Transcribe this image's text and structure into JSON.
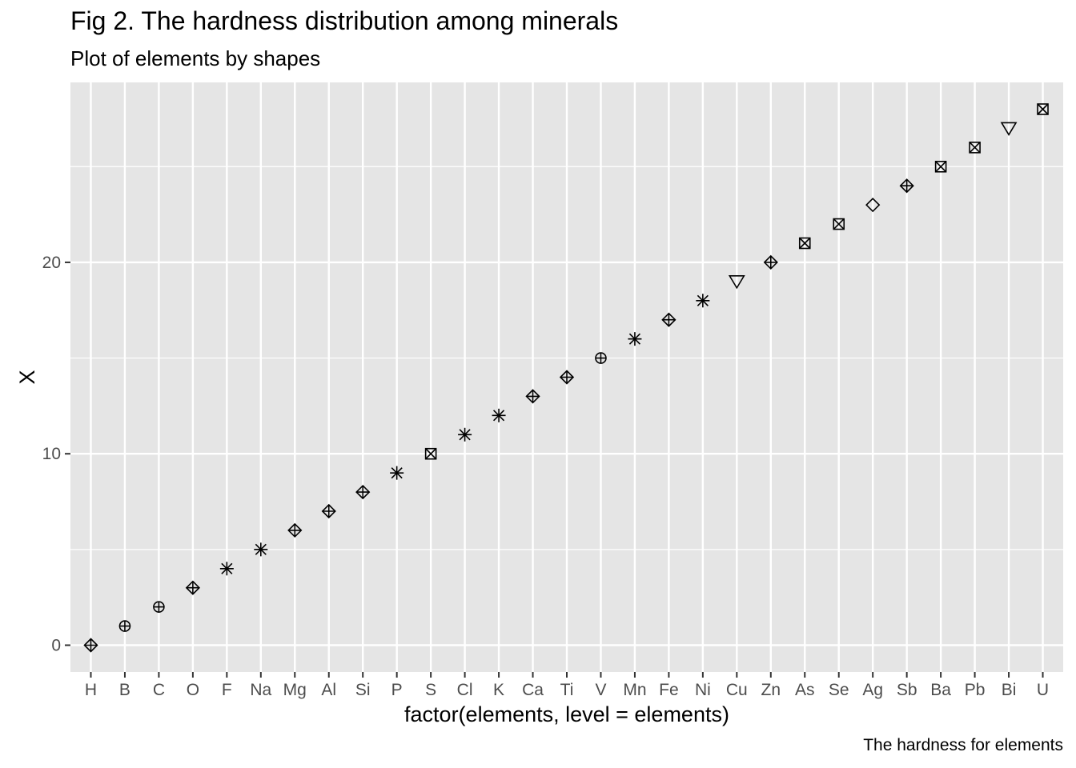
{
  "chart_data": {
    "type": "scatter",
    "title": "Fig 2. The hardness distribution among minerals",
    "subtitle": "Plot of elements by shapes",
    "caption": "The hardness for elements",
    "xlabel": "factor(elements, level = elements)",
    "ylabel": "X",
    "categories": [
      "H",
      "B",
      "C",
      "O",
      "F",
      "Na",
      "Mg",
      "Al",
      "Si",
      "P",
      "S",
      "Cl",
      "K",
      "Ca",
      "Ti",
      "V",
      "Mn",
      "Fe",
      "Ni",
      "Cu",
      "Zn",
      "As",
      "Se",
      "Ag",
      "Sb",
      "Ba",
      "Pb",
      "Bi",
      "U"
    ],
    "values": [
      0,
      1,
      2,
      3,
      4,
      5,
      6,
      7,
      8,
      9,
      10,
      11,
      12,
      13,
      14,
      15,
      16,
      17,
      18,
      19,
      20,
      21,
      22,
      23,
      24,
      25,
      26,
      27,
      28
    ],
    "shapes": [
      "diamond-plus",
      "circle-plus",
      "circle-plus",
      "diamond-plus",
      "asterisk",
      "asterisk",
      "diamond-plus",
      "diamond-plus",
      "diamond-plus",
      "asterisk",
      "square-cross",
      "asterisk",
      "asterisk",
      "diamond-plus",
      "diamond-plus",
      "circle-plus",
      "asterisk",
      "diamond-plus",
      "asterisk",
      "triangle-down",
      "diamond-plus",
      "square-cross",
      "square-cross",
      "diamond",
      "diamond-plus",
      "square-cross",
      "square-cross",
      "triangle-down",
      "square-cross"
    ],
    "yticks": [
      0,
      10,
      20
    ],
    "ylim": [
      -1.4,
      29.4
    ],
    "grid": true,
    "colors": {
      "panel": "#e5e5e5",
      "grid": "#ffffff",
      "point": "#000000",
      "tick": "#4d4d4d"
    }
  }
}
